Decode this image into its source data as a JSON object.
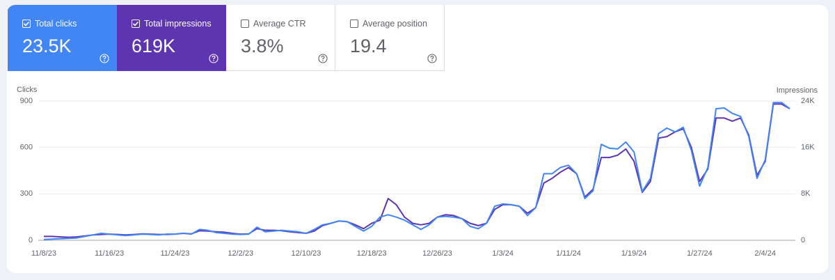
{
  "metrics": [
    {
      "label": "Total clicks",
      "value": "23.5K",
      "checked": true,
      "color": "#4285f4"
    },
    {
      "label": "Total impressions",
      "value": "619K",
      "checked": true,
      "color": "#5e35b1"
    },
    {
      "label": "Average CTR",
      "value": "3.8%",
      "checked": false
    },
    {
      "label": "Average position",
      "value": "19.4",
      "checked": false
    }
  ],
  "chart_data": {
    "type": "line",
    "y_label": "Clicks",
    "y2_label": "Impressions",
    "categories": [
      "11/8/23",
      null,
      null,
      null,
      null,
      null,
      null,
      null,
      "11/16/23",
      null,
      null,
      null,
      null,
      null,
      null,
      null,
      "11/24/23",
      null,
      null,
      null,
      null,
      null,
      null,
      null,
      "12/2/23",
      null,
      null,
      null,
      null,
      null,
      null,
      null,
      "12/10/23",
      null,
      null,
      null,
      null,
      null,
      null,
      null,
      "12/18/23",
      null,
      null,
      null,
      null,
      null,
      null,
      null,
      "12/26/23",
      null,
      null,
      null,
      null,
      null,
      null,
      null,
      "1/3/24",
      null,
      null,
      null,
      null,
      null,
      null,
      null,
      "1/11/24",
      null,
      null,
      null,
      null,
      null,
      null,
      null,
      "1/19/24",
      null,
      null,
      null,
      null,
      null,
      null,
      null,
      "1/27/24",
      null,
      null,
      null,
      null,
      null,
      null,
      null,
      "2/4/24",
      null,
      null,
      null
    ],
    "series": [
      {
        "name": "Clicks",
        "color": "#4285f4",
        "values": [
          5,
          8,
          10,
          12,
          15,
          25,
          35,
          45,
          40,
          35,
          30,
          35,
          40,
          38,
          35,
          40,
          40,
          45,
          40,
          70,
          65,
          50,
          45,
          40,
          38,
          40,
          85,
          55,
          60,
          65,
          60,
          55,
          45,
          70,
          100,
          110,
          125,
          120,
          90,
          60,
          90,
          150,
          165,
          150,
          130,
          100,
          70,
          100,
          150,
          155,
          150,
          140,
          90,
          75,
          110,
          220,
          235,
          230,
          220,
          160,
          210,
          430,
          430,
          470,
          485,
          430,
          270,
          320,
          620,
          595,
          590,
          635,
          570,
          315,
          400,
          690,
          725,
          700,
          730,
          580,
          350,
          470,
          850,
          855,
          820,
          800,
          670,
          400,
          520,
          890,
          890,
          850
        ]
      },
      {
        "name": "Impressions",
        "color": "#5e35b1",
        "axis": "y2",
        "values": [
          670,
          670,
          590,
          530,
          590,
          750,
          930,
          1010,
          1070,
          1010,
          930,
          1010,
          1120,
          1070,
          1010,
          1010,
          1070,
          1200,
          1120,
          1650,
          1600,
          1470,
          1390,
          1200,
          1070,
          1120,
          2000,
          1730,
          1730,
          1650,
          1470,
          1330,
          1200,
          1600,
          2530,
          2930,
          3330,
          3200,
          2670,
          2000,
          2930,
          3470,
          7200,
          6130,
          4000,
          2930,
          2670,
          2930,
          4000,
          4400,
          4270,
          3730,
          2930,
          2530,
          2930,
          5330,
          6130,
          6130,
          5870,
          4670,
          5600,
          9870,
          10670,
          11730,
          12530,
          11470,
          7470,
          8800,
          14270,
          14270,
          14670,
          15730,
          13600,
          8270,
          10130,
          17600,
          17870,
          18670,
          19200,
          16000,
          10130,
          12270,
          21070,
          21070,
          20530,
          21070,
          18130,
          11200,
          13600,
          23470,
          23470,
          22670
        ]
      }
    ],
    "ylim": [
      0,
      900
    ],
    "yticks": [
      0,
      300,
      600,
      900
    ],
    "y2lim": [
      0,
      24000
    ],
    "y2ticks": [
      0,
      {
        "value": 8000,
        "label": "8K"
      },
      {
        "value": 16000,
        "label": "16K"
      },
      {
        "value": 24000,
        "label": "24K"
      }
    ],
    "grid": true
  }
}
